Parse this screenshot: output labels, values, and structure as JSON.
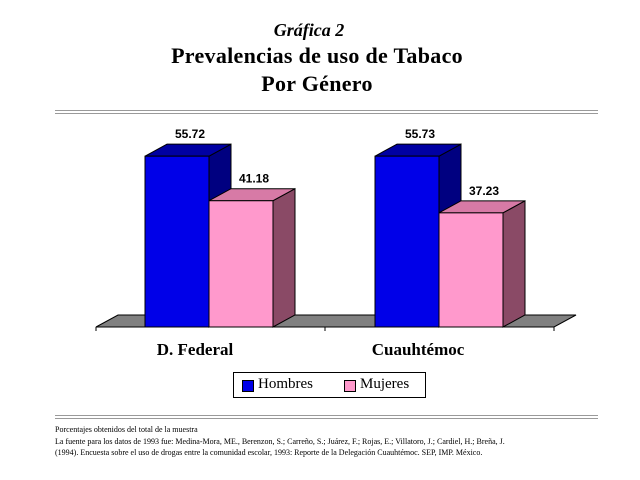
{
  "header": {
    "subtitle_top": "Gráfica 2",
    "title_line1": "Prevalencias de uso de Tabaco",
    "title_line2": "Por Género"
  },
  "legend": {
    "items": [
      "Hombres",
      "Mujeres"
    ]
  },
  "footnotes": {
    "line1": "Porcentajes obtenidos del total de la muestra",
    "line2": "La fuente para los datos de 1993 fue: Medina-Mora, ME., Berenzon, S.; Carreño, S.; Juárez, F.; Rojas, E.; Villatoro, J.; Cardiel, H.; Breña, J.",
    "line3": "(1994). Encuesta sobre el uso de drogas entre la comunidad escolar, 1993: Reporte de la Delegación Cuauhtémoc. SEP, IMP. México."
  },
  "colors": {
    "hombres": "#0000e8",
    "mujeres": "#ff99cc",
    "floor": "#808080"
  },
  "chart_data": {
    "type": "bar",
    "categories": [
      "D. Federal",
      "Cuauhtémoc"
    ],
    "series": [
      {
        "name": "Hombres",
        "values": [
          55.72,
          55.73
        ]
      },
      {
        "name": "Mujeres",
        "values": [
          41.18,
          37.23
        ]
      }
    ],
    "data_labels": [
      [
        "55.72",
        "41.18"
      ],
      [
        "55.73",
        "37.23"
      ]
    ],
    "title": "Prevalencias de uso de Tabaco Por Género",
    "ylim": [
      0,
      60
    ],
    "grid": false,
    "legend_position": "bottom",
    "style": "3d"
  }
}
